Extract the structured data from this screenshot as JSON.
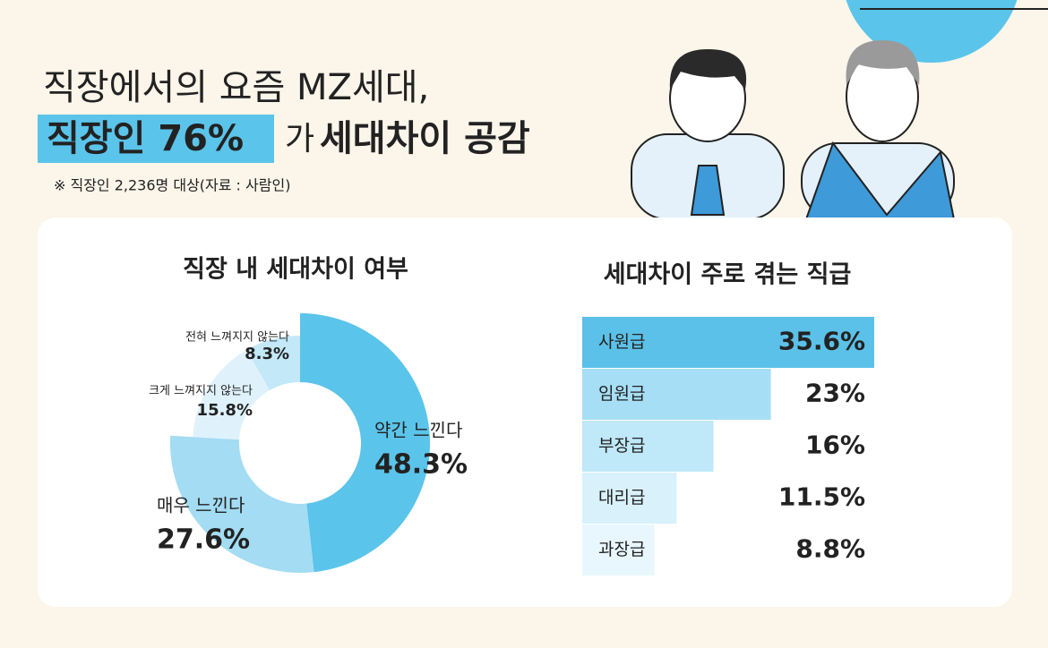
{
  "header": {
    "title_line1": "직장에서의 요즘 MZ세대,",
    "highlight": "직장인 76%",
    "particle": "가",
    "title_end": "세대차이 공감",
    "note": "※ 직장인 2,236명 대상(자료 : 사람인)"
  },
  "chart_data": [
    {
      "type": "pie",
      "donut": true,
      "title": "직장 내 세대차이 여부",
      "categories": [
        "약간 느낀다",
        "매우 느낀다",
        "크게 느껴지지 않는다",
        "전혀 느껴지지 않는다"
      ],
      "values": [
        48.3,
        27.6,
        15.8,
        8.3
      ],
      "value_labels": [
        "48.3%",
        "27.6%",
        "15.8%",
        "8.3%"
      ],
      "colors": [
        "#5bc4ea",
        "#a3dcf3",
        "#dff2fb",
        "#c3e8f8"
      ]
    },
    {
      "type": "bar",
      "orientation": "horizontal",
      "title": "세대차이 주로 겪는 직급",
      "categories": [
        "사원급",
        "임원급",
        "부장급",
        "대리급",
        "과장급"
      ],
      "values": [
        35.6,
        23,
        16,
        11.5,
        8.8
      ],
      "value_labels": [
        "35.6%",
        "23%",
        "16%",
        "11.5%",
        "8.8%"
      ],
      "colors": [
        "#5bc1e8",
        "#a6def5",
        "#bfe8f8",
        "#d8f1fb",
        "#e8f7fd"
      ]
    }
  ]
}
